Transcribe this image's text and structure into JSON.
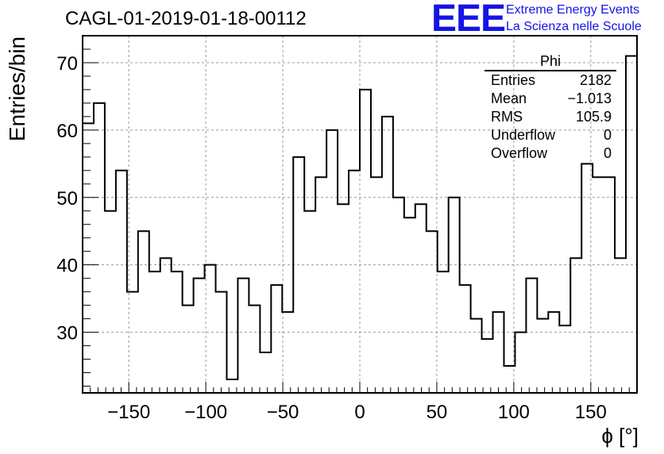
{
  "header": {
    "title": "CAGL-01-2019-01-18-00112",
    "logo_text": "EEE",
    "logo_line1": "Extreme Energy Events",
    "logo_line2": "La Scienza nelle Scuole"
  },
  "stats": {
    "name": "Phi",
    "rows": [
      {
        "label": "Entries",
        "value": "2182"
      },
      {
        "label": "Mean",
        "value": "−1.013"
      },
      {
        "label": "RMS",
        "value": "105.9"
      },
      {
        "label": "Underflow",
        "value": "0"
      },
      {
        "label": "Overflow",
        "value": "0"
      }
    ]
  },
  "chart_data": {
    "type": "bar",
    "histogram": true,
    "title": "CAGL-01-2019-01-18-00112",
    "xlabel": "ϕ [°]",
    "ylabel": "Entries/bin",
    "xlim": [
      -180,
      180
    ],
    "ylim": [
      21,
      74
    ],
    "bin_edges_start": -180,
    "bin_width": 7.2,
    "values": [
      61,
      64,
      48,
      54,
      36,
      45,
      39,
      41,
      39,
      34,
      38,
      40,
      36,
      23,
      38,
      34,
      27,
      37,
      33,
      56,
      48,
      53,
      60,
      49,
      54,
      66,
      53,
      62,
      50,
      47,
      49,
      45,
      39,
      50,
      37,
      32,
      29,
      33,
      25,
      30,
      38,
      32,
      33,
      31,
      41,
      55,
      53,
      53,
      41,
      71
    ],
    "xticks": [
      -150,
      -100,
      -50,
      0,
      50,
      100,
      150
    ],
    "xtick_labels": [
      "−150",
      "−100",
      "−50",
      "0",
      "50",
      "100",
      "150"
    ],
    "yticks": [
      30,
      40,
      50,
      60,
      70
    ],
    "ytick_labels": [
      "30",
      "40",
      "50",
      "60",
      "70"
    ],
    "grid": true,
    "colors": {
      "line": "#000000",
      "grid": "#999999",
      "logo": "#1414e6"
    }
  }
}
